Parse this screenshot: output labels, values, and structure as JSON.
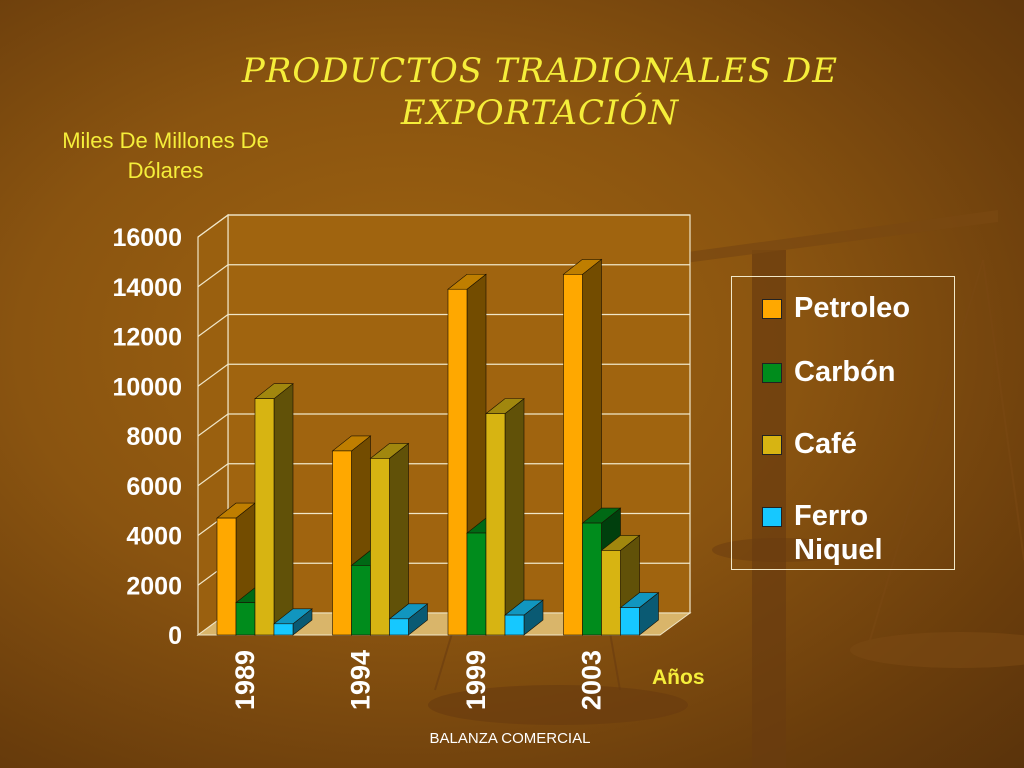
{
  "slide": {
    "title": "PRODUCTOS TRADIONALES DE EXPORTACIÓN",
    "unit_label": "Miles De Millones De Dólares",
    "footer": "BALANZA COMERCIAL"
  },
  "chart_data": {
    "type": "bar",
    "title": "PRODUCTOS TRADIONALES DE EXPORTACIÓN",
    "ylabel": "Miles De Millones De Dólares",
    "xlabel": "Años",
    "categories": [
      "1989",
      "1994",
      "1999",
      "2003"
    ],
    "ylim": [
      0,
      16000
    ],
    "yticks": [
      0,
      2000,
      4000,
      6000,
      8000,
      10000,
      12000,
      14000,
      16000
    ],
    "grid": true,
    "legend_position": "right",
    "series": [
      {
        "name": "Petroleo",
        "color": "#ffa800",
        "values": [
          4700,
          7400,
          13900,
          14500
        ]
      },
      {
        "name": "Carbón",
        "color": "#008c1c",
        "values": [
          1300,
          2800,
          4100,
          4500
        ]
      },
      {
        "name": "Café",
        "color": "#d7b412",
        "values": [
          9500,
          7100,
          8900,
          3400
        ]
      },
      {
        "name": "Ferro Niquel",
        "color": "#16c8ff",
        "values": [
          450,
          650,
          800,
          1100
        ]
      }
    ]
  }
}
